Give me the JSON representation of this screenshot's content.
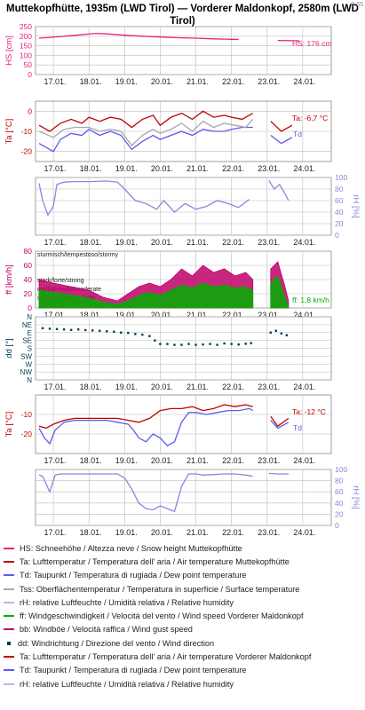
{
  "header": {
    "title": "Muttekopfhütte, 1935m (LWD Tirol) — Vorderer Maldonkopf, 2580m (LWD Tirol)",
    "stamp": "0.55"
  },
  "colors": {
    "snow": "#e8207e",
    "temp": "#c00000",
    "dew": "#5b5bf0",
    "surface": "#a8a8a8",
    "rh": "#8888dd",
    "wind": "#00b000",
    "gust": "#c0006a",
    "dir": "#003d55",
    "grid": "#bcbcbc"
  },
  "x_ticks": [
    "17.01.",
    "18.01.",
    "19.01.",
    "20.01.",
    "21.01.",
    "22.01.",
    "23.01.",
    "24.01."
  ],
  "chart_data": [
    {
      "type": "line",
      "ylabel": "HS [cm]",
      "ylim": [
        0,
        250
      ],
      "yticks": [
        0,
        50,
        100,
        150,
        200,
        250
      ],
      "annotation": "HS: 176 cm",
      "series": [
        {
          "name": "HS",
          "color": "#e8207e",
          "x": [
            16.6,
            17.0,
            17.5,
            17.9,
            18.2,
            18.5,
            19.0,
            19.5,
            20.0,
            20.5,
            21.0,
            21.5,
            22.0,
            22.2,
            22.6,
            23.3,
            23.9
          ],
          "y": [
            190,
            195,
            203,
            210,
            215,
            212,
            205,
            200,
            196,
            192,
            190,
            186,
            184,
            183,
            null,
            178,
            176
          ]
        }
      ]
    },
    {
      "type": "line",
      "ylabel": "Ta [°C]",
      "ylim": [
        -25,
        5
      ],
      "yticks": [
        -20,
        -10,
        0
      ],
      "annotation": "Ta: -6,7 °C",
      "annotation2": "Td",
      "series": [
        {
          "name": "Ta",
          "color": "#c00000",
          "x": [
            16.6,
            16.9,
            17.2,
            17.5,
            17.8,
            18.0,
            18.3,
            18.6,
            18.9,
            19.2,
            19.5,
            19.8,
            20.0,
            20.3,
            20.6,
            20.9,
            21.2,
            21.5,
            21.8,
            22.0,
            22.3,
            22.6,
            22.7,
            23.1,
            23.4,
            23.7
          ],
          "y": [
            -7,
            -10,
            -6,
            -4,
            -6,
            -3,
            -5,
            -3,
            -4,
            -8,
            -4,
            -2,
            -7,
            -3,
            -1,
            -4,
            0,
            -3,
            -2,
            -3,
            -4,
            -1,
            null,
            -5,
            -10,
            -7
          ]
        },
        {
          "name": "Td",
          "color": "#5b5bf0",
          "x": [
            16.6,
            16.8,
            17.0,
            17.2,
            17.5,
            17.8,
            18.0,
            18.3,
            18.6,
            18.9,
            19.2,
            19.5,
            19.8,
            20.0,
            20.3,
            20.6,
            20.9,
            21.2,
            21.5,
            21.8,
            22.0,
            22.3,
            22.6,
            22.7,
            23.1,
            23.4,
            23.7
          ],
          "y": [
            -16,
            -18,
            -20,
            -14,
            -11,
            -12,
            -9,
            -12,
            -10,
            -12,
            -19,
            -15,
            -12,
            -14,
            -12,
            -10,
            -12,
            -9,
            -10,
            -10,
            -9,
            -8,
            -8,
            null,
            -12,
            -16,
            -13
          ]
        },
        {
          "name": "Tss",
          "color": "#a8a8a8",
          "x": [
            16.6,
            17.0,
            17.3,
            17.6,
            18.0,
            18.3,
            18.6,
            18.9,
            19.2,
            19.5,
            19.8,
            20.0,
            20.3,
            20.6,
            20.9,
            21.2,
            21.5,
            21.8,
            22.1,
            22.4,
            22.6
          ],
          "y": [
            -10,
            -13,
            -9,
            -8,
            -8,
            -10,
            -9,
            -10,
            -17,
            -12,
            -9,
            -11,
            -9,
            -6,
            -10,
            -5,
            -8,
            -6,
            -7,
            -8,
            -4
          ]
        }
      ]
    },
    {
      "type": "line",
      "ylabel_right": "rH [%]",
      "ylim": [
        0,
        100
      ],
      "yticks": [
        0,
        20,
        40,
        60,
        80,
        100
      ],
      "series": [
        {
          "name": "rH",
          "color": "#8888dd",
          "x": [
            16.6,
            16.7,
            16.85,
            17.0,
            17.1,
            17.3,
            17.6,
            18.0,
            18.5,
            18.8,
            19.0,
            19.3,
            19.6,
            19.9,
            20.1,
            20.4,
            20.7,
            21.0,
            21.3,
            21.6,
            21.9,
            22.2,
            22.5,
            22.7,
            23.05,
            23.2,
            23.35,
            23.5,
            23.6
          ],
          "y": [
            90,
            60,
            35,
            50,
            88,
            92,
            93,
            93,
            94,
            92,
            80,
            60,
            55,
            45,
            60,
            40,
            55,
            45,
            50,
            60,
            55,
            48,
            62,
            null,
            95,
            80,
            88,
            72,
            60
          ]
        }
      ]
    },
    {
      "type": "area",
      "ylabel": "ff [km/h]",
      "ylim": [
        0,
        80
      ],
      "yticks": [
        0,
        20,
        40,
        60,
        80
      ],
      "labels": [
        "sturmisch/tempestoso/stormy",
        "stark/forte/strong",
        "mäßig/medio/moderate",
        "schwach/debole/light"
      ],
      "annotation": "ff: 1,8 km/h",
      "series": [
        {
          "name": "bb",
          "color": "#c0006a",
          "x": [
            16.6,
            17.0,
            17.5,
            18.0,
            18.4,
            18.8,
            19.1,
            19.4,
            19.7,
            20.0,
            20.3,
            20.6,
            20.9,
            21.2,
            21.5,
            21.8,
            22.1,
            22.4,
            22.6,
            22.7,
            23.1,
            23.3,
            23.5,
            23.6
          ],
          "y": [
            40,
            35,
            30,
            25,
            15,
            10,
            20,
            30,
            35,
            30,
            40,
            55,
            45,
            60,
            50,
            55,
            45,
            50,
            40,
            null,
            55,
            65,
            30,
            10
          ]
        },
        {
          "name": "ff",
          "color": "#00b000",
          "x": [
            16.6,
            17.0,
            17.5,
            18.0,
            18.4,
            18.8,
            19.1,
            19.4,
            19.7,
            20.0,
            20.3,
            20.6,
            20.9,
            21.2,
            21.5,
            21.8,
            22.1,
            22.4,
            22.6,
            22.7,
            23.1,
            23.3,
            23.5,
            23.6
          ],
          "y": [
            25,
            22,
            18,
            14,
            8,
            5,
            10,
            18,
            22,
            18,
            25,
            32,
            28,
            35,
            30,
            32,
            28,
            30,
            24,
            null,
            35,
            45,
            15,
            2
          ]
        }
      ]
    },
    {
      "type": "scatter",
      "ylabel": "dd [°]",
      "ylim": [
        0,
        360
      ],
      "yticks": [
        "N",
        "NE",
        "E",
        "SE",
        "S",
        "SW",
        "W",
        "NW",
        "N"
      ],
      "series": [
        {
          "name": "dd",
          "color": "#003d55",
          "x": [
            16.7,
            16.9,
            17.1,
            17.3,
            17.5,
            17.7,
            17.9,
            18.1,
            18.3,
            18.5,
            18.7,
            18.9,
            19.1,
            19.3,
            19.5,
            19.7,
            19.85,
            20.0,
            20.2,
            20.4,
            20.6,
            20.8,
            21.0,
            21.2,
            21.4,
            21.6,
            21.8,
            22.0,
            22.2,
            22.4,
            22.55,
            23.1,
            23.25,
            23.4,
            23.55
          ],
          "y": [
            295,
            292,
            290,
            288,
            285,
            288,
            284,
            282,
            280,
            278,
            275,
            270,
            268,
            262,
            258,
            250,
            225,
            205,
            205,
            200,
            200,
            205,
            200,
            202,
            205,
            200,
            208,
            205,
            202,
            206,
            210,
            270,
            280,
            265,
            255
          ]
        }
      ]
    },
    {
      "type": "line",
      "ylabel": "Ta [°C]",
      "ylim": [
        -30,
        0
      ],
      "yticks": [
        -20,
        -10
      ],
      "annotation": "Ta: -12 °C",
      "annotation2": "Td",
      "series": [
        {
          "name": "Ta",
          "color": "#c00000",
          "x": [
            16.6,
            16.8,
            17.0,
            17.3,
            17.6,
            17.9,
            18.2,
            18.5,
            18.8,
            19.1,
            19.4,
            19.7,
            20.0,
            20.3,
            20.6,
            20.9,
            21.2,
            21.5,
            21.8,
            22.1,
            22.4,
            22.6,
            22.7,
            23.1,
            23.3,
            23.6
          ],
          "y": [
            -16,
            -17,
            -15,
            -13,
            -12,
            -12,
            -12,
            -12,
            -12,
            -13,
            -14,
            -12,
            -8,
            -7,
            -7,
            -6,
            -8,
            -7,
            -5,
            -6,
            -5,
            -6,
            null,
            -11,
            -16,
            -12
          ]
        },
        {
          "name": "Td",
          "color": "#5b5bf0",
          "x": [
            16.6,
            16.75,
            16.9,
            17.05,
            17.3,
            17.6,
            17.9,
            18.2,
            18.5,
            18.8,
            19.1,
            19.25,
            19.4,
            19.6,
            19.8,
            20.0,
            20.2,
            20.4,
            20.6,
            20.8,
            21.0,
            21.3,
            21.6,
            21.9,
            22.2,
            22.5,
            22.6,
            22.7,
            23.1,
            23.3,
            23.6
          ],
          "y": [
            -17,
            -22,
            -25,
            -18,
            -14,
            -13,
            -13,
            -13,
            -13,
            -14,
            -15,
            -18,
            -22,
            -24,
            -20,
            -22,
            -26,
            -24,
            -14,
            -9,
            -9,
            -10,
            -9,
            -8,
            -8,
            -7,
            -8,
            null,
            -13,
            -17,
            -14
          ]
        }
      ]
    },
    {
      "type": "line",
      "ylabel_right": "rH [%]",
      "ylim": [
        0,
        100
      ],
      "yticks": [
        0,
        20,
        40,
        60,
        80,
        100
      ],
      "series": [
        {
          "name": "rH",
          "color": "#8888dd",
          "x": [
            16.6,
            16.7,
            16.9,
            17.05,
            17.2,
            17.6,
            18.0,
            18.4,
            18.8,
            19.0,
            19.2,
            19.4,
            19.6,
            19.8,
            20.0,
            20.2,
            20.4,
            20.6,
            20.8,
            21.0,
            21.2,
            21.5,
            21.8,
            22.1,
            22.4,
            22.6,
            22.7,
            23.05,
            23.3,
            23.6
          ],
          "y": [
            90,
            88,
            60,
            90,
            92,
            92,
            92,
            92,
            92,
            85,
            65,
            40,
            30,
            28,
            35,
            30,
            25,
            70,
            92,
            92,
            90,
            91,
            92,
            92,
            90,
            88,
            null,
            93,
            92,
            92
          ]
        }
      ]
    }
  ],
  "legend": [
    {
      "color": "#e8207e",
      "label": "HS: Schneehöhe / Altezza neve / Snow height  Muttekopfhütte"
    },
    {
      "color": "#c00000",
      "label": "Ta: Lufttemperatur / Temperatura dell' aria / Air temperature  Muttekopfhütte"
    },
    {
      "color": "#5b5bf0",
      "label": "Td: Taupunkt / Temperatura di rugiada / Dew point temperature"
    },
    {
      "color": "#a8a8a8",
      "label": "Tss: Oberflächentemperatur / Temperatura in superficie / Surface temperature"
    },
    {
      "color": "#b8b8e8",
      "label": "rH: relative Luftfeuchte / Umidità relativa / Relative humidity"
    },
    {
      "color": "#00b000",
      "label": "ff: Windgeschwindigkeit / Velocità del vento / Wind speed  Vorderer Maldonkopf"
    },
    {
      "color": "#c0006a",
      "label": "bb: Windböe / Velocità raffica / Wind gust speed"
    },
    {
      "color": "#003d55",
      "label": "dd: Windrichtung / Direzione del vento / Wind direction",
      "dot": true
    },
    {
      "color": "#c00000",
      "label": "Ta: Lufttemperatur / Temperatura dell' aria / Air temperature  Vorderer Maldonkopf"
    },
    {
      "color": "#5b5bf0",
      "label": "Td: Taupunkt / Temperatura di rugiada / Dew point temperature"
    },
    {
      "color": "#b8b8e8",
      "label": "rH: relative Luftfeuchte / Umidità relativa / Relative humidity"
    }
  ]
}
